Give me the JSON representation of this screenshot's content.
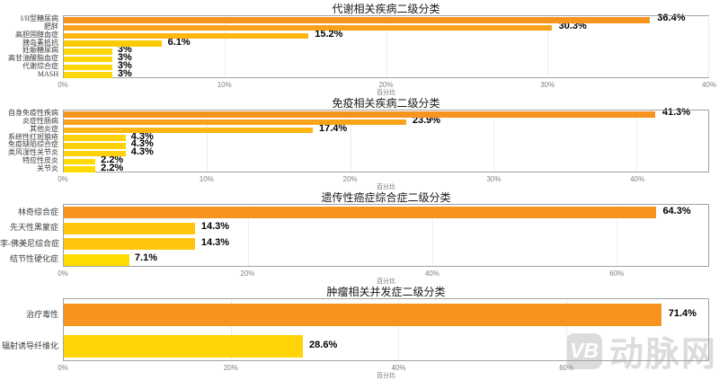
{
  "watermark": {
    "logo_text": "VB",
    "brand_text": "动脉网",
    "color": "#dcdcdc"
  },
  "chart_data": [
    {
      "type": "bar",
      "orientation": "horizontal",
      "title": "代谢相关疾病二级分类",
      "xlabel": "百分比",
      "xlim": [
        0,
        40
      ],
      "xticks": [
        0,
        10,
        20,
        30,
        40
      ],
      "xtick_labels": [
        "0%",
        "10%",
        "20%",
        "30%",
        "40%"
      ],
      "grid": true,
      "categories": [
        "I/II型糖尿病",
        "肥胖",
        "高胆固醇血症",
        "胰岛素抵抗",
        "妊娠糖尿病",
        "高甘油酸脂血症",
        "代谢综合症",
        "MASH"
      ],
      "values": [
        36.4,
        30.3,
        15.2,
        6.1,
        3,
        3,
        3,
        3
      ],
      "value_labels": [
        "36.4%",
        "30.3%",
        "15.2%",
        "6.1%",
        "3%",
        "3%",
        "3%",
        "3%"
      ],
      "bar_colors": [
        "#F7941D",
        "#F9A31A",
        "#FFB612",
        "#FFCB05",
        "#FFD608",
        "#FFD608",
        "#FFD608",
        "#FFD608"
      ]
    },
    {
      "type": "bar",
      "orientation": "horizontal",
      "title": "免疫相关疾病二级分类",
      "xlabel": "百分比",
      "xlim": [
        0,
        45
      ],
      "xticks": [
        0,
        10,
        20,
        30,
        40
      ],
      "xtick_labels": [
        "0%",
        "10%",
        "20%",
        "30%",
        "40%"
      ],
      "grid": true,
      "categories": [
        "自身免疫性疾病",
        "炎症性肠病",
        "其他炎症",
        "系统性红斑狼疮",
        "免疫缺陷综合症",
        "类风湿性关节炎",
        "特应性皮炎",
        "关节炎"
      ],
      "values": [
        41.3,
        23.9,
        17.4,
        4.3,
        4.3,
        4.3,
        2.2,
        2.2
      ],
      "value_labels": [
        "41.3%",
        "23.9%",
        "17.4%",
        "4.3%",
        "4.3%",
        "4.3%",
        "2.2%",
        "2.2%"
      ],
      "bar_colors": [
        "#F7941D",
        "#F9A31A",
        "#FFB612",
        "#FFD20B",
        "#FFD20B",
        "#FFD20B",
        "#FFDB03",
        "#FFDB03"
      ]
    },
    {
      "type": "bar",
      "orientation": "horizontal",
      "title": "遗传性癌症综合症二级分类",
      "xlabel": "百分比",
      "xlim": [
        0,
        70
      ],
      "xticks": [
        0,
        20,
        40,
        60
      ],
      "xtick_labels": [
        "0%",
        "20%",
        "40%",
        "60%"
      ],
      "grid": true,
      "categories": [
        "林奇综合症",
        "先天性黑蒙症",
        "李-佛美尼综合症",
        "结节性硬化症"
      ],
      "values": [
        64.3,
        14.3,
        14.3,
        7.1
      ],
      "value_labels": [
        "64.3%",
        "14.3%",
        "14.3%",
        "7.1%"
      ],
      "bar_colors": [
        "#F7941D",
        "#FFC60D",
        "#FFC60D",
        "#FFDC03"
      ]
    },
    {
      "type": "bar",
      "orientation": "horizontal",
      "title": "肿瘤相关并发症二级分类",
      "xlabel": "百分比",
      "xlim": [
        0,
        77
      ],
      "xticks": [
        0,
        20,
        40,
        60
      ],
      "xtick_labels": [
        "0%",
        "20%",
        "40%",
        "60%"
      ],
      "grid": true,
      "categories": [
        "治疗毒性",
        "辐射诱导纤维化"
      ],
      "values": [
        71.4,
        28.6
      ],
      "value_labels": [
        "71.4%",
        "28.6%"
      ],
      "bar_colors": [
        "#F7941D",
        "#FFD406"
      ]
    }
  ]
}
